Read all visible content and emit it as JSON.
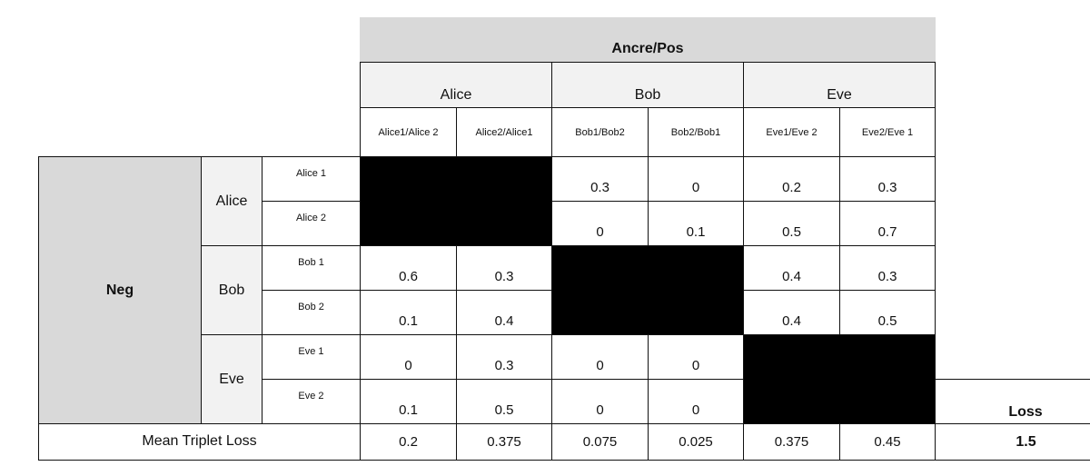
{
  "header": {
    "title": "Ancre/Pos",
    "groups": [
      "Alice",
      "Bob",
      "Eve"
    ],
    "pairs": [
      "Alice1/Alice 2",
      "Alice2/Alice1",
      "Bob1/Bob2",
      "Bob2/Bob1",
      "Eve1/Eve 2",
      "Eve2/Eve 1"
    ]
  },
  "rows": {
    "neg_label": "Neg",
    "groups": [
      "Alice",
      "Bob",
      "Eve"
    ],
    "samples": [
      "Alice 1",
      "Alice 2",
      "Bob 1",
      "Bob 2",
      "Eve 1",
      "Eve 2"
    ]
  },
  "values": [
    [
      null,
      null,
      "0.3",
      "0",
      "0.2",
      "0.3"
    ],
    [
      null,
      null,
      "0",
      "0.1",
      "0.5",
      "0.7"
    ],
    [
      "0.6",
      "0.3",
      null,
      null,
      "0.4",
      "0.3"
    ],
    [
      "0.1",
      "0.4",
      null,
      null,
      "0.4",
      "0.5"
    ],
    [
      "0",
      "0.3",
      "0",
      "0",
      null,
      null
    ],
    [
      "0.1",
      "0.5",
      "0",
      "0",
      null,
      null
    ]
  ],
  "footer": {
    "mean_label": "Mean Triplet Loss",
    "means": [
      "0.2",
      "0.375",
      "0.075",
      "0.025",
      "0.375",
      "0.45"
    ],
    "loss_label": "Loss",
    "loss_value": "1.5"
  }
}
